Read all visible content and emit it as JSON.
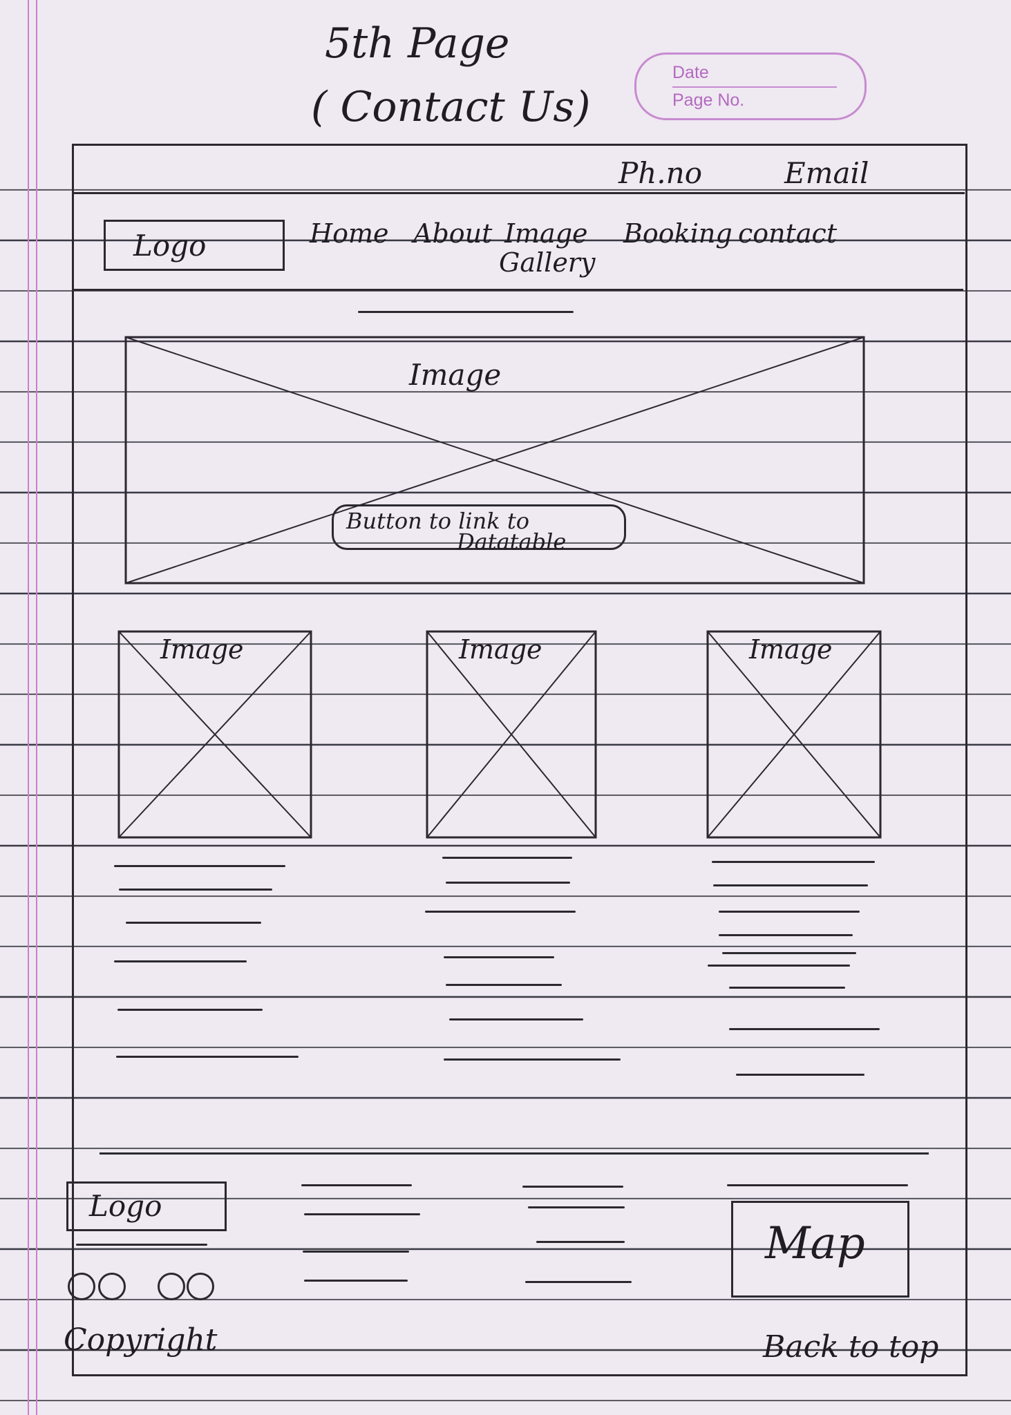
{
  "page": {
    "title_line1": "5th Page",
    "title_line2": "( Contact Us)"
  },
  "date_box": {
    "date_label": "Date",
    "page_no_label": "Page No."
  },
  "topbar": {
    "phone": "Ph.no",
    "email": "Email"
  },
  "header": {
    "logo": "Logo",
    "nav": [
      "Home",
      "About",
      "Image",
      "Gallery",
      "Booking",
      "contact"
    ]
  },
  "hero": {
    "image_label": "Image",
    "button_label_line1": "Button to link to",
    "button_label_line2": "Datatable"
  },
  "cards": [
    {
      "image_label": "Image"
    },
    {
      "image_label": "Image"
    },
    {
      "image_label": "Image"
    }
  ],
  "footer": {
    "logo": "Logo",
    "map": "Map",
    "copyright": "Copyright",
    "back_to_top": "Back to top"
  },
  "colors": {
    "ink": "#2b2830",
    "margin_line": "#c77fcf",
    "stamp": "#c78bd0"
  }
}
